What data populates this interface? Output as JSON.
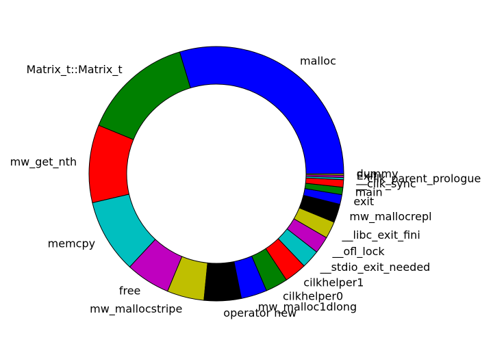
{
  "chart_data": {
    "type": "pie",
    "style": "donut",
    "start": "x-axis, counter-clockwise",
    "slices": [
      {
        "label": "malloc",
        "value": 31.5,
        "color": "#0000ff"
      },
      {
        "label": "Matrix_t::Matrix_t",
        "value": 15.0,
        "color": "#008000"
      },
      {
        "label": "mw_get_nth",
        "value": 10.5,
        "color": "#ff0000"
      },
      {
        "label": "memcpy",
        "value": 10.0,
        "color": "#00bfbf"
      },
      {
        "label": "free",
        "value": 6.0,
        "color": "#bf00bf"
      },
      {
        "label": "mw_mallocstripe",
        "value": 5.0,
        "color": "#bfbf00"
      },
      {
        "label": "operator new",
        "value": 5.0,
        "color": "#000000"
      },
      {
        "label": "mw_malloc1dlong",
        "value": 3.5,
        "color": "#0000ff"
      },
      {
        "label": "cilkhelper0",
        "value": 3.0,
        "color": "#008000"
      },
      {
        "label": "cilkhelper1",
        "value": 3.0,
        "color": "#ff0000"
      },
      {
        "label": "__stdio_exit_needed",
        "value": 2.5,
        "color": "#00bfbf"
      },
      {
        "label": "__ofl_lock",
        "value": 2.3,
        "color": "#bf00bf"
      },
      {
        "label": "__libc_exit_fini",
        "value": 2.3,
        "color": "#bfbf00"
      },
      {
        "label": "mw_mallocrepl",
        "value": 2.5,
        "color": "#000000"
      },
      {
        "label": "exit",
        "value": 1.3,
        "color": "#0000ff"
      },
      {
        "label": "main",
        "value": 1.0,
        "color": "#008000"
      },
      {
        "label": "__cilk_sync",
        "value": 1.0,
        "color": "#ff0000"
      },
      {
        "label": "__cilk_parent_prologue",
        "value": 0.3,
        "color": "#00bfbf"
      },
      {
        "label": "Exit",
        "value": 0.3,
        "color": "#bf00bf"
      },
      {
        "label": "dummy",
        "value": 0.2,
        "color": "#bfbf00"
      }
    ]
  }
}
